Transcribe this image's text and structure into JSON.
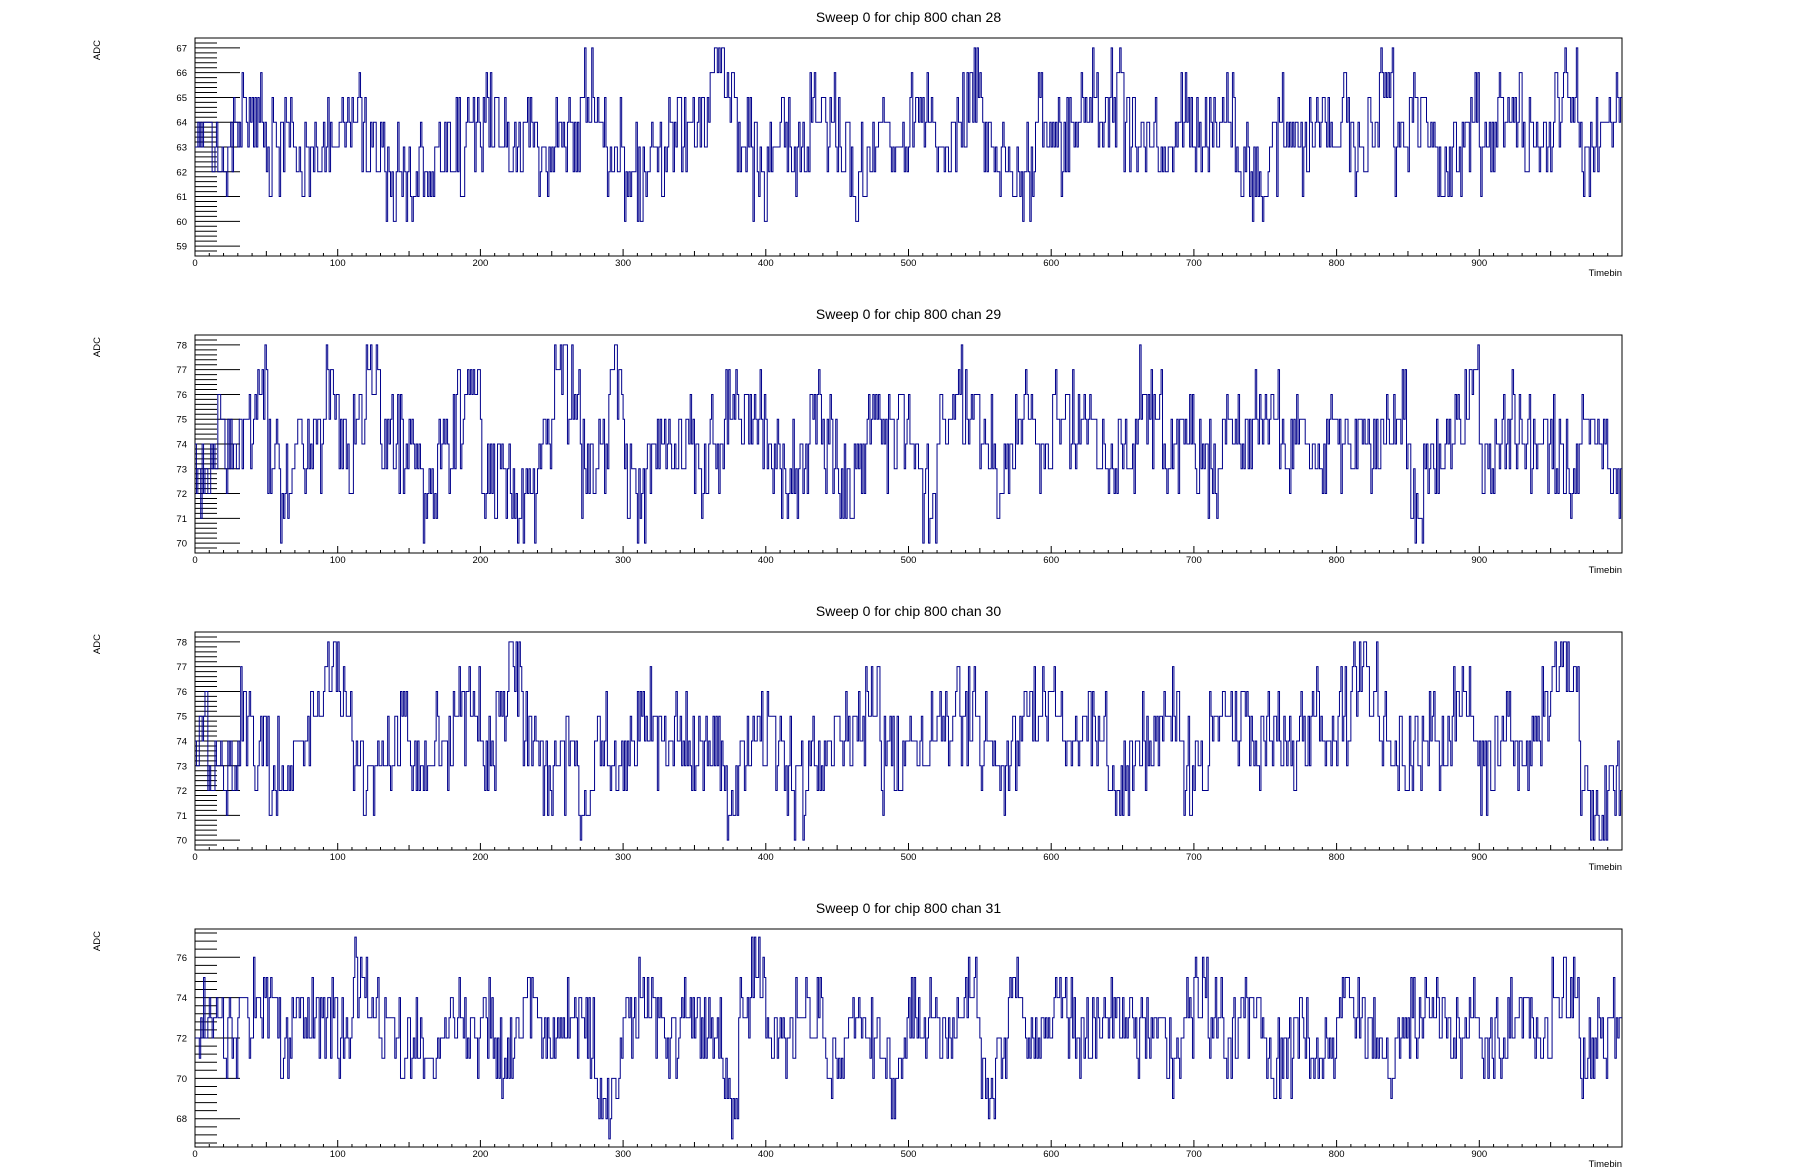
{
  "chart_data": [
    {
      "type": "line",
      "title": "Sweep 0 for chip 800 chan 28",
      "xlabel": "Timebin",
      "ylabel": "ADC",
      "xlim": [
        0,
        1000
      ],
      "ylim": [
        58.6,
        67.4
      ],
      "x_ticks": [
        "0",
        "100",
        "200",
        "300",
        "400",
        "500",
        "600",
        "700",
        "800",
        "900"
      ],
      "y_ticks": [
        59,
        60,
        61,
        62,
        63,
        64,
        65,
        66,
        67
      ],
      "grid": false,
      "legend": "none",
      "line_color": "#00008b",
      "series": [
        {
          "x": [
            0,
            10,
            20,
            30,
            40,
            50,
            60,
            70,
            80,
            90,
            100,
            110,
            120,
            130,
            140,
            150,
            160,
            170,
            180,
            190,
            200,
            210,
            220,
            230,
            240,
            250,
            260,
            270,
            280,
            290,
            300,
            310,
            320,
            330,
            340,
            350,
            360,
            370,
            380,
            390,
            400,
            410,
            420,
            430,
            440,
            450,
            460,
            470,
            480,
            490,
            500,
            510,
            520,
            530,
            540,
            550,
            560,
            570,
            580,
            590,
            600,
            610,
            620,
            630,
            640,
            650,
            660,
            670,
            680,
            690,
            700,
            710,
            720,
            730,
            740,
            750,
            760,
            770,
            780,
            790,
            800,
            810,
            820,
            830,
            840,
            850,
            860,
            870,
            880,
            890,
            900,
            910,
            920,
            930,
            940,
            950,
            960,
            970,
            980,
            990
          ],
          "values": [
            63,
            64,
            62,
            63,
            65,
            62,
            64,
            63,
            61,
            64,
            63,
            65,
            62,
            64,
            60,
            63,
            61,
            63,
            62,
            64,
            63,
            65,
            62,
            64,
            63,
            63,
            62,
            65,
            64,
            62,
            63,
            60,
            64,
            62,
            65,
            63,
            64,
            67,
            62,
            63,
            60,
            64,
            63,
            62,
            65,
            62,
            63,
            61,
            64,
            62,
            63,
            65,
            62,
            64,
            63,
            66,
            62,
            63,
            60,
            64,
            63,
            62,
            64,
            65,
            63,
            66,
            62,
            63,
            62,
            64,
            63,
            62,
            65,
            63,
            62,
            61,
            64,
            63,
            62,
            65,
            63,
            64,
            62,
            66,
            63,
            62,
            65,
            63,
            61,
            64,
            63,
            62,
            65,
            63,
            64,
            62,
            67,
            63,
            62,
            64
          ]
        }
      ]
    },
    {
      "type": "line",
      "title": "Sweep 0 for chip 800 chan 29",
      "xlabel": "Timebin",
      "ylabel": "ADC",
      "xlim": [
        0,
        1000
      ],
      "ylim": [
        69.6,
        78.4
      ],
      "x_ticks": [
        "0",
        "100",
        "200",
        "300",
        "400",
        "500",
        "600",
        "700",
        "800",
        "900"
      ],
      "y_ticks": [
        70,
        71,
        72,
        73,
        74,
        75,
        76,
        77,
        78
      ],
      "grid": false,
      "legend": "none",
      "line_color": "#00008b",
      "series": [
        {
          "x": [
            0,
            10,
            20,
            30,
            40,
            50,
            60,
            70,
            80,
            90,
            100,
            110,
            120,
            130,
            140,
            150,
            160,
            170,
            180,
            190,
            200,
            210,
            220,
            230,
            240,
            250,
            260,
            270,
            280,
            290,
            300,
            310,
            320,
            330,
            340,
            350,
            360,
            370,
            380,
            390,
            400,
            410,
            420,
            430,
            440,
            450,
            460,
            470,
            480,
            490,
            500,
            510,
            520,
            530,
            540,
            550,
            560,
            570,
            580,
            590,
            600,
            610,
            620,
            630,
            640,
            650,
            660,
            670,
            680,
            690,
            700,
            710,
            720,
            730,
            740,
            750,
            760,
            770,
            780,
            790,
            800,
            810,
            820,
            830,
            840,
            850,
            860,
            870,
            880,
            890,
            900,
            910,
            920,
            930,
            940,
            950,
            960,
            970,
            980,
            990
          ],
          "values": [
            74,
            72,
            75,
            73,
            74,
            77,
            70,
            74,
            73,
            75,
            76,
            72,
            78,
            74,
            73,
            75,
            70,
            74,
            73,
            76,
            75,
            71,
            74,
            70,
            73,
            75,
            78,
            74,
            72,
            76,
            75,
            70,
            74,
            73,
            75,
            72,
            74,
            73,
            76,
            74,
            75,
            73,
            72,
            74,
            75,
            73,
            71,
            74,
            75,
            73,
            76,
            70,
            74,
            75,
            77,
            73,
            74,
            72,
            75,
            74,
            73,
            76,
            74,
            75,
            72,
            73,
            74,
            77,
            73,
            75,
            74,
            71,
            75,
            74,
            73,
            76,
            73,
            75,
            74,
            72,
            75,
            73,
            74,
            73,
            76,
            74,
            70,
            75,
            73,
            77,
            74,
            72,
            75,
            74,
            73,
            75,
            72,
            74,
            75,
            73
          ]
        }
      ]
    },
    {
      "type": "line",
      "title": "Sweep 0 for chip 800 chan 30",
      "xlabel": "Timebin",
      "ylabel": "ADC",
      "xlim": [
        0,
        1000
      ],
      "ylim": [
        69.6,
        78.4
      ],
      "x_ticks": [
        "0",
        "100",
        "200",
        "300",
        "400",
        "500",
        "600",
        "700",
        "800",
        "900"
      ],
      "y_ticks": [
        70,
        71,
        72,
        73,
        74,
        75,
        76,
        77,
        78
      ],
      "grid": false,
      "legend": "none",
      "line_color": "#00008b",
      "series": [
        {
          "x": [
            0,
            10,
            20,
            30,
            40,
            50,
            60,
            70,
            80,
            90,
            100,
            110,
            120,
            130,
            140,
            150,
            160,
            170,
            180,
            190,
            200,
            210,
            220,
            230,
            240,
            250,
            260,
            270,
            280,
            290,
            300,
            310,
            320,
            330,
            340,
            350,
            360,
            370,
            380,
            390,
            400,
            410,
            420,
            430,
            440,
            450,
            460,
            470,
            480,
            490,
            500,
            510,
            520,
            530,
            540,
            550,
            560,
            570,
            580,
            590,
            600,
            610,
            620,
            630,
            640,
            650,
            660,
            670,
            680,
            690,
            700,
            710,
            720,
            730,
            740,
            750,
            760,
            770,
            780,
            790,
            800,
            810,
            820,
            830,
            840,
            850,
            860,
            870,
            880,
            890,
            900,
            910,
            920,
            930,
            940,
            950,
            960,
            970,
            980,
            990
          ],
          "values": [
            74,
            73,
            72,
            74,
            75,
            73,
            72,
            74,
            73,
            76,
            78,
            74,
            72,
            73,
            75,
            74,
            72,
            75,
            73,
            76,
            74,
            72,
            78,
            73,
            74,
            71,
            75,
            70,
            74,
            73,
            72,
            76,
            74,
            73,
            75,
            72,
            74,
            73,
            71,
            74,
            73,
            75,
            70,
            74,
            72,
            75,
            73,
            77,
            74,
            72,
            74,
            73,
            75,
            74,
            76,
            73,
            74,
            72,
            75,
            74,
            76,
            73,
            74,
            75,
            72,
            71,
            74,
            73,
            75,
            74,
            72,
            73,
            76,
            74,
            75,
            73,
            74,
            72,
            75,
            74,
            73,
            76,
            78,
            74,
            73,
            72,
            75,
            74,
            73,
            76,
            74,
            72,
            75,
            73,
            74,
            76,
            78,
            74,
            70,
            72
          ]
        }
      ]
    },
    {
      "type": "line",
      "title": "Sweep 0 for chip 800 chan 31",
      "xlabel": "Timebin",
      "ylabel": "ADC",
      "xlim": [
        0,
        1000
      ],
      "ylim": [
        66.6,
        77.4
      ],
      "x_ticks": [
        "0",
        "100",
        "200",
        "300",
        "400",
        "500",
        "600",
        "700",
        "800",
        "900"
      ],
      "y_ticks": [
        68,
        70,
        72,
        74,
        76
      ],
      "grid": false,
      "legend": "none",
      "line_color": "#00008b",
      "series": [
        {
          "x": [
            0,
            10,
            20,
            30,
            40,
            50,
            60,
            70,
            80,
            90,
            100,
            110,
            120,
            130,
            140,
            150,
            160,
            170,
            180,
            190,
            200,
            210,
            220,
            230,
            240,
            250,
            260,
            270,
            280,
            290,
            300,
            310,
            320,
            330,
            340,
            350,
            360,
            370,
            380,
            390,
            400,
            410,
            420,
            430,
            440,
            450,
            460,
            470,
            480,
            490,
            500,
            510,
            520,
            530,
            540,
            550,
            560,
            570,
            580,
            590,
            600,
            610,
            620,
            630,
            640,
            650,
            660,
            670,
            680,
            690,
            700,
            710,
            720,
            730,
            740,
            750,
            760,
            770,
            780,
            790,
            800,
            810,
            820,
            830,
            840,
            850,
            860,
            870,
            880,
            890,
            900,
            910,
            920,
            930,
            940,
            950,
            960,
            970,
            980,
            990
          ],
          "values": [
            72,
            74,
            71,
            73,
            72,
            75,
            70,
            73,
            72,
            74,
            71,
            73,
            76,
            72,
            71,
            73,
            70,
            72,
            74,
            71,
            73,
            72,
            70,
            74,
            73,
            71,
            72,
            74,
            70,
            67,
            73,
            72,
            75,
            71,
            73,
            72,
            74,
            70,
            68,
            77,
            72,
            73,
            71,
            74,
            72,
            70,
            73,
            72,
            71,
            68,
            74,
            72,
            73,
            71,
            75,
            72,
            68,
            74,
            73,
            71,
            72,
            75,
            70,
            73,
            72,
            74,
            71,
            73,
            72,
            70,
            75,
            72,
            73,
            71,
            74,
            72,
            69,
            73,
            72,
            70,
            73,
            74,
            71,
            72,
            70,
            73,
            72,
            75,
            71,
            73,
            72,
            70,
            74,
            72,
            73,
            71,
            76,
            72,
            70,
            73
          ]
        }
      ]
    }
  ]
}
